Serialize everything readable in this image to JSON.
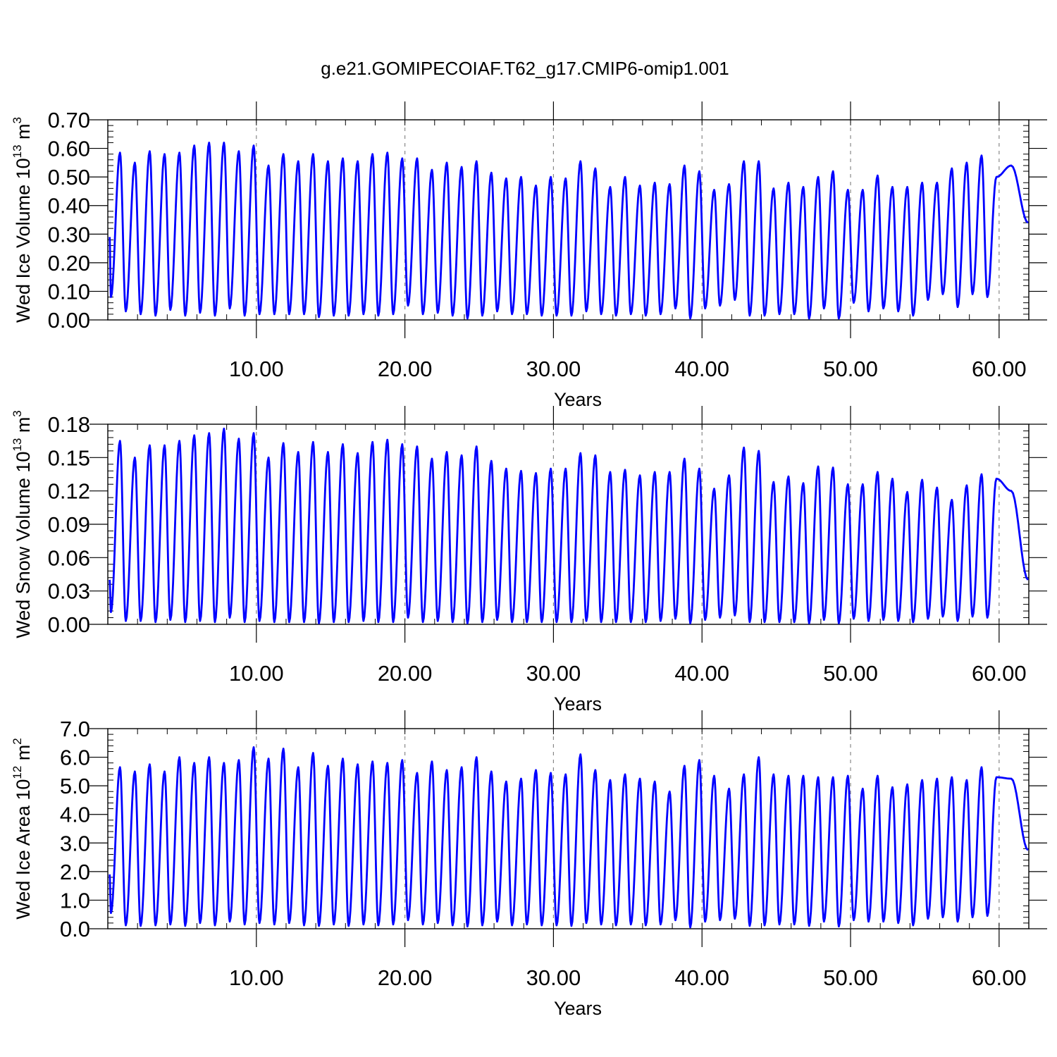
{
  "title": "g.e21.GOMIPECOIAF.T62_g17.CMIP6-omip1.001",
  "colors": {
    "series": "#0000ff",
    "axis": "#000000",
    "refline": "#888888"
  },
  "chart_data": [
    {
      "type": "line",
      "ylabel": "Wed Ice Volume 10",
      "ylabel_exp": "13",
      "ylabel_unit": " m",
      "ylabel_unit_exp": "3",
      "xlabel": "Years",
      "xlim": [
        0,
        62
      ],
      "ylim": [
        0,
        0.7
      ],
      "xticks": [
        10,
        20,
        30,
        40,
        50,
        60
      ],
      "xtick_labels": [
        "10.00",
        "20.00",
        "30.00",
        "40.00",
        "50.00",
        "60.00"
      ],
      "yticks": [
        0,
        0.1,
        0.2,
        0.3,
        0.4,
        0.5,
        0.6,
        0.7
      ],
      "ytick_labels": [
        "0.00",
        "0.10",
        "0.20",
        "0.30",
        "0.40",
        "0.50",
        "0.60",
        "0.70"
      ],
      "series": [
        {
          "start": 0.29,
          "peaks": [
            0.585,
            0.55,
            0.59,
            0.58,
            0.585,
            0.61,
            0.62,
            0.62,
            0.59,
            0.61,
            0.54,
            0.58,
            0.555,
            0.58,
            0.555,
            0.565,
            0.555,
            0.58,
            0.585,
            0.565,
            0.565,
            0.525,
            0.55,
            0.535,
            0.555,
            0.515,
            0.495,
            0.5,
            0.47,
            0.5,
            0.495,
            0.555,
            0.53,
            0.465,
            0.5,
            0.47,
            0.48,
            0.475,
            0.54,
            0.52,
            0.455,
            0.475,
            0.555,
            0.555,
            0.46,
            0.48,
            0.465,
            0.5,
            0.52,
            0.455,
            0.455,
            0.505,
            0.465,
            0.465,
            0.48,
            0.48,
            0.53,
            0.55,
            0.575,
            0.5,
            0.54
          ],
          "troughs": [
            0.08,
            0.03,
            0.02,
            0.015,
            0.035,
            0.015,
            0.025,
            0.015,
            0.04,
            0.015,
            0.02,
            0.02,
            0.02,
            0.02,
            0.01,
            0.015,
            0.015,
            0.02,
            0.015,
            0.02,
            0.05,
            0.02,
            0.025,
            0.015,
            0.005,
            0.015,
            0.03,
            0.02,
            0.02,
            0.015,
            0.015,
            0.015,
            0.03,
            0.02,
            0.015,
            0.02,
            0.015,
            0.02,
            0.04,
            0.005,
            0.04,
            0.05,
            0.07,
            0.015,
            0.015,
            0.02,
            0.02,
            0.005,
            0.04,
            0.005,
            0.06,
            0.03,
            0.04,
            0.03,
            0.015,
            0.07,
            0.09,
            0.045,
            0.09,
            0.08
          ],
          "end": 0.34
        }
      ]
    },
    {
      "type": "line",
      "ylabel": "Wed Snow Volume 10",
      "ylabel_exp": "13",
      "ylabel_unit": " m",
      "ylabel_unit_exp": "3",
      "xlabel": "Years",
      "xlim": [
        0,
        62
      ],
      "ylim": [
        0,
        0.18
      ],
      "xticks": [
        10,
        20,
        30,
        40,
        50,
        60
      ],
      "xtick_labels": [
        "10.00",
        "20.00",
        "30.00",
        "40.00",
        "50.00",
        "60.00"
      ],
      "yticks": [
        0,
        0.03,
        0.06,
        0.09,
        0.12,
        0.15,
        0.18
      ],
      "ytick_labels": [
        "0.00",
        "0.03",
        "0.06",
        "0.09",
        "0.12",
        "0.15",
        "0.18"
      ],
      "series": [
        {
          "start": 0.04,
          "peaks": [
            0.165,
            0.15,
            0.161,
            0.161,
            0.165,
            0.17,
            0.172,
            0.176,
            0.167,
            0.172,
            0.15,
            0.163,
            0.155,
            0.164,
            0.155,
            0.162,
            0.154,
            0.164,
            0.166,
            0.162,
            0.16,
            0.149,
            0.155,
            0.152,
            0.16,
            0.147,
            0.14,
            0.138,
            0.136,
            0.14,
            0.14,
            0.154,
            0.152,
            0.137,
            0.139,
            0.134,
            0.137,
            0.137,
            0.149,
            0.14,
            0.122,
            0.134,
            0.159,
            0.156,
            0.128,
            0.133,
            0.127,
            0.142,
            0.141,
            0.126,
            0.126,
            0.137,
            0.131,
            0.119,
            0.13,
            0.123,
            0.112,
            0.125,
            0.135,
            0.131,
            0.12
          ],
          "troughs": [
            0.011,
            0.003,
            0.003,
            0.002,
            0.004,
            0.002,
            0.003,
            0.002,
            0.006,
            0.002,
            0.003,
            0.002,
            0.002,
            0.002,
            0.001,
            0.002,
            0.002,
            0.003,
            0.002,
            0.002,
            0.006,
            0.002,
            0.003,
            0.002,
            0.001,
            0.002,
            0.004,
            0.002,
            0.002,
            0.002,
            0.002,
            0.002,
            0.003,
            0.002,
            0.002,
            0.002,
            0.002,
            0.003,
            0.005,
            0.001,
            0.004,
            0.006,
            0.008,
            0.002,
            0.002,
            0.002,
            0.002,
            0.001,
            0.004,
            0.001,
            0.005,
            0.003,
            0.004,
            0.003,
            0.002,
            0.005,
            0.007,
            0.003,
            0.007,
            0.006
          ],
          "end": 0.04
        }
      ]
    },
    {
      "type": "line",
      "ylabel": "Wed Ice Area 10",
      "ylabel_exp": "12",
      "ylabel_unit": " m",
      "ylabel_unit_exp": "2",
      "xlabel": "Years",
      "xlim": [
        0,
        62
      ],
      "ylim": [
        0,
        7.0
      ],
      "xticks": [
        10,
        20,
        30,
        40,
        50,
        60
      ],
      "xtick_labels": [
        "10.00",
        "20.00",
        "30.00",
        "40.00",
        "50.00",
        "60.00"
      ],
      "yticks": [
        0,
        1,
        2,
        3,
        4,
        5,
        6,
        7
      ],
      "ytick_labels": [
        "0.0",
        "1.0",
        "2.0",
        "3.0",
        "4.0",
        "5.0",
        "6.0",
        "7.0"
      ],
      "series": [
        {
          "start": 1.9,
          "peaks": [
            5.65,
            5.5,
            5.75,
            5.5,
            6.0,
            5.8,
            6.0,
            5.8,
            5.9,
            6.35,
            5.95,
            6.3,
            5.65,
            6.15,
            5.7,
            5.95,
            5.75,
            5.85,
            5.8,
            5.9,
            5.45,
            5.85,
            5.55,
            5.65,
            6.0,
            5.5,
            5.15,
            5.25,
            5.55,
            5.45,
            5.4,
            6.1,
            5.55,
            5.2,
            5.4,
            5.25,
            5.15,
            4.8,
            5.7,
            5.9,
            5.35,
            4.9,
            5.4,
            6.0,
            5.4,
            5.35,
            5.35,
            5.3,
            5.3,
            5.35,
            4.9,
            5.35,
            4.95,
            5.05,
            5.2,
            5.25,
            5.3,
            5.2,
            5.65,
            5.3,
            5.25
          ],
          "troughs": [
            0.55,
            0.12,
            0.1,
            0.12,
            0.15,
            0.1,
            0.2,
            0.12,
            0.25,
            0.15,
            0.2,
            0.15,
            0.2,
            0.12,
            0.1,
            0.15,
            0.1,
            0.15,
            0.12,
            0.15,
            0.3,
            0.15,
            0.2,
            0.12,
            0.08,
            0.12,
            0.25,
            0.12,
            0.15,
            0.12,
            0.12,
            0.1,
            0.2,
            0.15,
            0.12,
            0.15,
            0.12,
            0.15,
            0.3,
            0.05,
            0.25,
            0.3,
            0.35,
            0.1,
            0.12,
            0.15,
            0.15,
            0.1,
            0.25,
            0.08,
            0.3,
            0.25,
            0.25,
            0.2,
            0.12,
            0.35,
            0.4,
            0.25,
            0.4,
            0.45
          ],
          "end": 2.75
        }
      ]
    }
  ]
}
